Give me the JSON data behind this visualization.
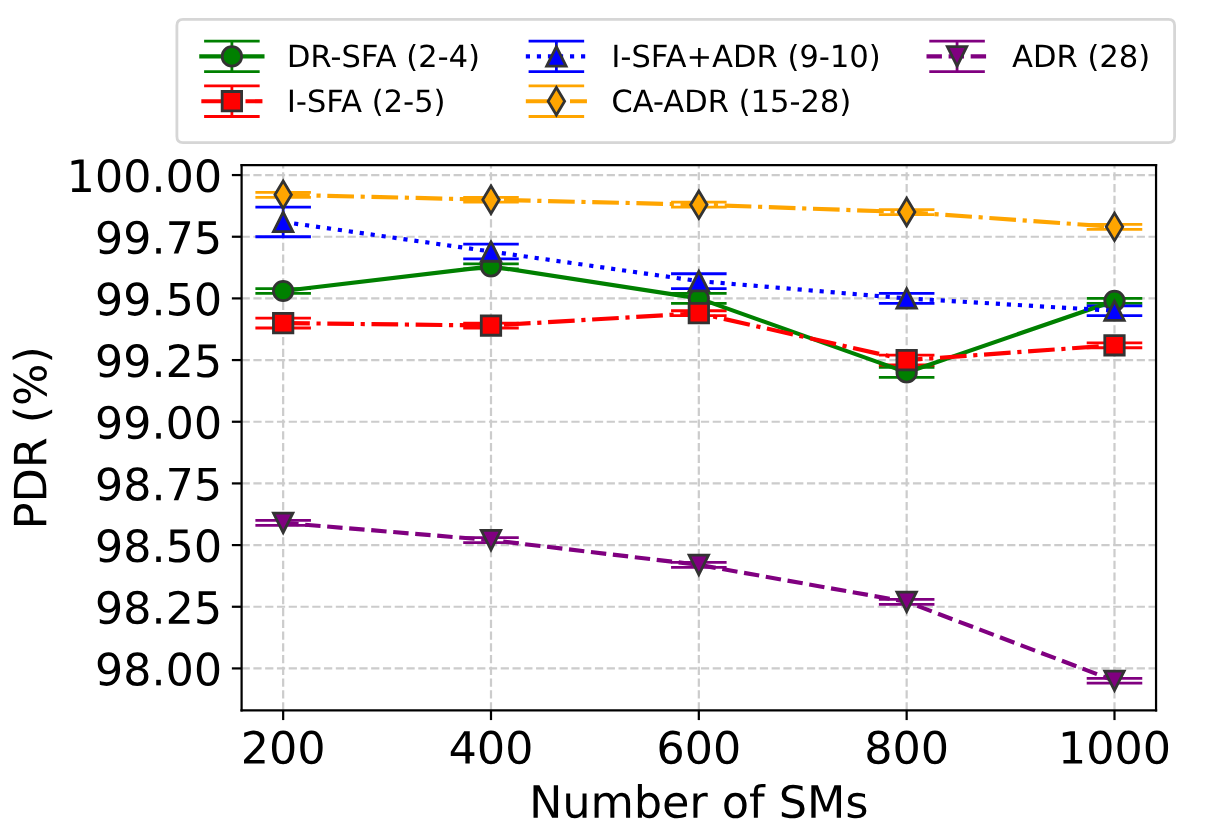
{
  "chart_data": {
    "type": "line",
    "xlabel": "Number of SMs",
    "ylabel": "PDR (%)",
    "x": [
      200,
      400,
      600,
      800,
      1000
    ],
    "xlim": [
      160,
      1040
    ],
    "ylim": [
      97.83,
      100.04
    ],
    "xticks": [
      200,
      400,
      600,
      800,
      1000
    ],
    "yticks": [
      {
        "value": 98.0,
        "label": "98.00"
      },
      {
        "value": 98.25,
        "label": "98.25"
      },
      {
        "value": 98.5,
        "label": "98.50"
      },
      {
        "value": 98.75,
        "label": "98.75"
      },
      {
        "value": 99.0,
        "label": "99.00"
      },
      {
        "value": 99.25,
        "label": "99.25"
      },
      {
        "value": 99.5,
        "label": "99.50"
      },
      {
        "value": 99.75,
        "label": "99.75"
      },
      {
        "value": 100.0,
        "label": "100.00"
      }
    ],
    "grid": true,
    "legend": "top",
    "series": [
      {
        "name": "DR-SFA (2-4)",
        "color": "#008000",
        "marker": "circle",
        "line_style": "solid",
        "values": [
          99.53,
          99.63,
          99.5,
          99.2,
          99.49
        ],
        "errors": [
          0.01,
          0.01,
          0.02,
          0.02,
          0.01
        ]
      },
      {
        "name": "I-SFA (2-5)",
        "color": "#ff0000",
        "marker": "square",
        "line_style": "dashdot",
        "values": [
          99.4,
          99.39,
          99.44,
          99.25,
          99.31
        ],
        "errors": [
          0.02,
          0.01,
          0.01,
          0.02,
          0.01
        ]
      },
      {
        "name": "I-SFA+ADR (9-10)",
        "color": "#0000ff",
        "marker": "triangle",
        "line_style": "dotted",
        "values": [
          99.81,
          99.69,
          99.57,
          99.5,
          99.45
        ],
        "errors": [
          0.06,
          0.03,
          0.03,
          0.02,
          0.02
        ]
      },
      {
        "name": "CA-ADR (15-28)",
        "color": "#ffa500",
        "marker": "diamond",
        "line_style": "dashdot",
        "values": [
          99.92,
          99.9,
          99.88,
          99.85,
          99.79
        ],
        "errors": [
          0.01,
          0.01,
          0.01,
          0.01,
          0.01
        ]
      },
      {
        "name": "ADR (28)",
        "color": "#800080",
        "marker": "triangle_down",
        "line_style": "dashed",
        "values": [
          98.59,
          98.52,
          98.42,
          98.27,
          97.95
        ],
        "errors": [
          0.01,
          0.01,
          0.01,
          0.01,
          0.01
        ]
      }
    ]
  }
}
